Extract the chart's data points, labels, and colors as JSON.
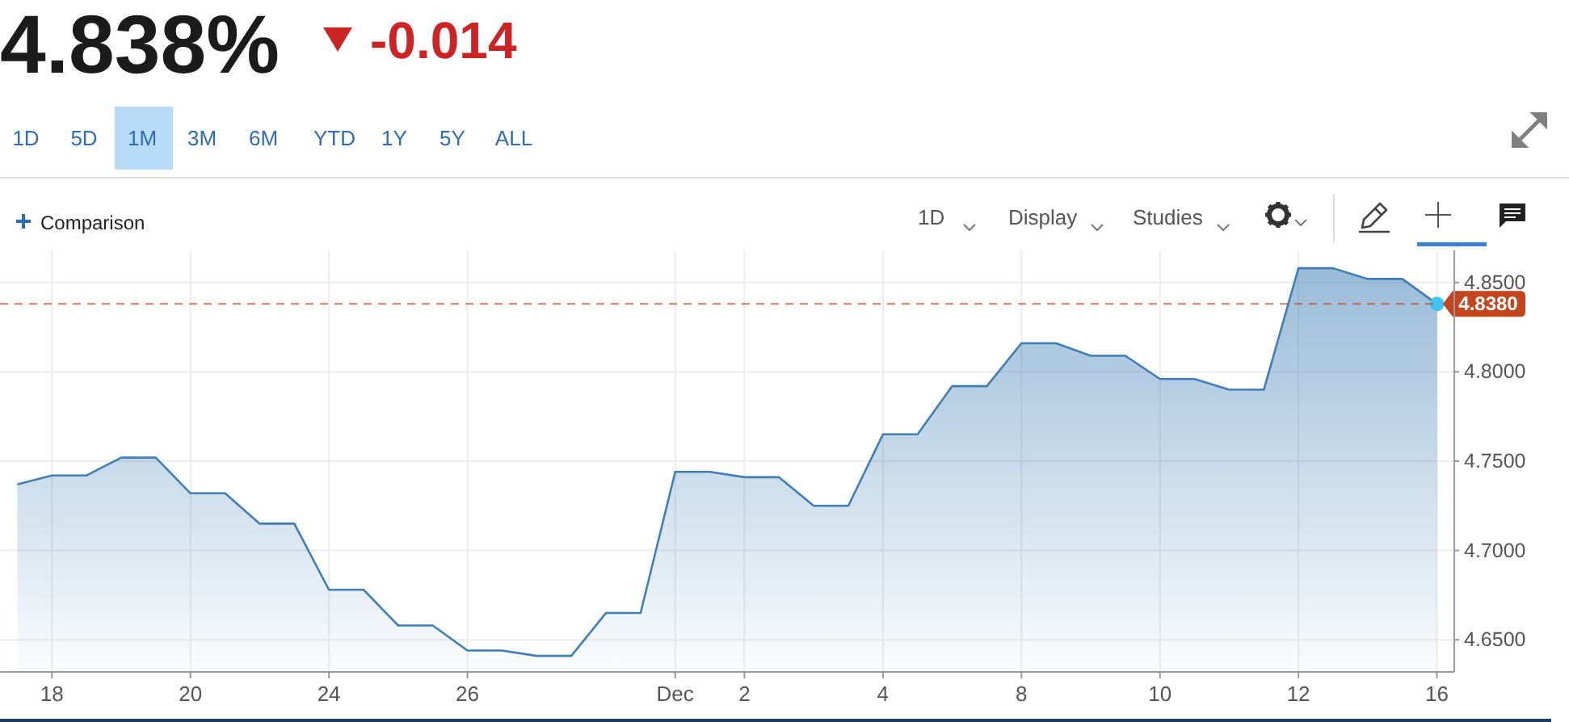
{
  "chart_data": {
    "type": "area",
    "title": "4.838%",
    "subtitle": "-0.014",
    "categories": [
      null,
      "18",
      null,
      null,
      null,
      "20",
      null,
      null,
      null,
      "24",
      null,
      null,
      null,
      "26",
      null,
      null,
      null,
      null,
      null,
      "Dec",
      null,
      "2",
      null,
      null,
      null,
      "4",
      null,
      null,
      null,
      "8",
      null,
      null,
      null,
      "10",
      null,
      null,
      null,
      "12",
      null,
      null,
      null,
      "16"
    ],
    "series": [
      {
        "color": "#3f7fb5",
        "values": [
          4.737,
          4.742,
          4.742,
          4.752,
          4.752,
          4.732,
          4.732,
          4.715,
          4.715,
          4.678,
          4.678,
          4.658,
          4.658,
          4.644,
          4.644,
          4.641,
          4.641,
          4.665,
          4.665,
          4.744,
          4.744,
          4.741,
          4.741,
          4.725,
          4.725,
          4.765,
          4.765,
          4.792,
          4.792,
          4.816,
          4.816,
          4.809,
          4.809,
          4.796,
          4.796,
          4.79,
          4.79,
          4.858,
          4.858,
          4.852,
          4.852,
          4.838
        ]
      },
      {
        "type": "scatter",
        "color": "#3fc3f2",
        "marker": "circle",
        "values": [
          null,
          null,
          null,
          null,
          null,
          null,
          null,
          null,
          null,
          null,
          null,
          null,
          null,
          null,
          null,
          null,
          null,
          null,
          null,
          null,
          null,
          null,
          null,
          null,
          null,
          null,
          null,
          null,
          null,
          null,
          null,
          null,
          null,
          null,
          null,
          null,
          null,
          null,
          null,
          null,
          null,
          4.838
        ]
      }
    ],
    "ylim": [
      4.632,
      4.868
    ],
    "yticks": [
      {
        "value": 4.65,
        "label": "4.6500"
      },
      {
        "value": 4.7,
        "label": "4.7000"
      },
      {
        "value": 4.75,
        "label": "4.7500"
      },
      {
        "value": 4.8,
        "label": "4.8000"
      },
      {
        "value": 4.85,
        "label": "4.8500"
      }
    ],
    "grid": true,
    "ref_lines": [
      {
        "axis": "y",
        "value": 4.838,
        "label": "4.8380",
        "color": "#c2451e",
        "line_style": "dashed"
      }
    ],
    "annotations": [
      "1D",
      "5D",
      "1M",
      "3M",
      "6M",
      "YTD",
      "1Y",
      "5Y",
      "ALL",
      "Comparison",
      "1D",
      "Display",
      "Studies"
    ]
  }
}
